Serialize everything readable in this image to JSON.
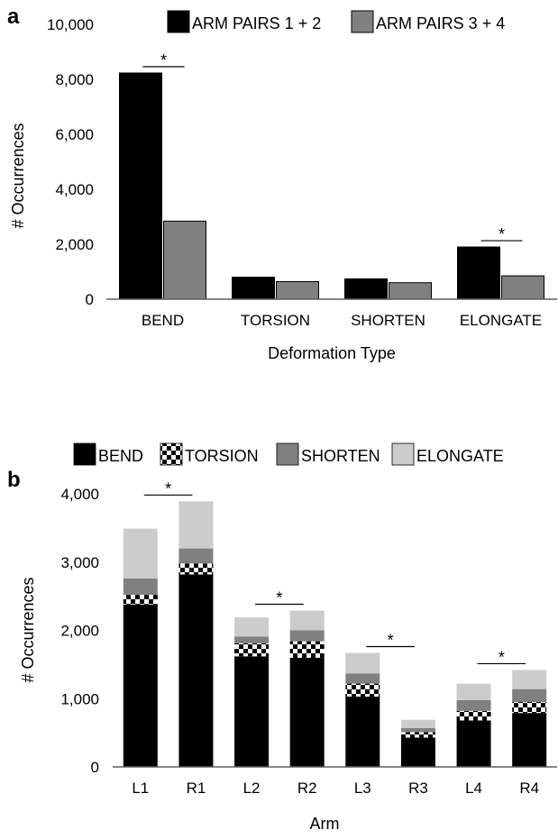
{
  "colors": {
    "black": "#000000",
    "gray": "#808080",
    "light_gray": "#cccccc",
    "axis": "#5f5f5f",
    "checker_light": "#ffffff",
    "checker_dark": "#000000"
  },
  "chart_data": [
    {
      "type": "bar",
      "panel_label": "a",
      "xlabel": "Deformation Type",
      "ylabel": "# Occurrences",
      "ylim": [
        0,
        10000
      ],
      "yticks": [
        0,
        2000,
        4000,
        6000,
        8000,
        10000
      ],
      "ytick_labels": [
        "0",
        "2,000",
        "4,000",
        "6,000",
        "8,000",
        "10,000"
      ],
      "grid": false,
      "legend_position": "top",
      "categories": [
        "BEND",
        "TORSION",
        "SHORTEN",
        "ELONGATE"
      ],
      "series": [
        {
          "name": "ARM PAIRS 1 + 2",
          "color": "#000000",
          "values": [
            8230,
            800,
            740,
            1900
          ]
        },
        {
          "name": "ARM PAIRS 3 + 4",
          "color": "#808080",
          "values": [
            2840,
            640,
            600,
            850
          ]
        }
      ],
      "significance": [
        {
          "category": "BEND",
          "label": "*"
        },
        {
          "category": "ELONGATE",
          "label": "*"
        }
      ]
    },
    {
      "type": "bar",
      "stacked": true,
      "panel_label": "b",
      "xlabel": "Arm",
      "ylabel": "# Occurrences",
      "ylim": [
        0,
        4000
      ],
      "yticks": [
        0,
        1000,
        2000,
        3000,
        4000
      ],
      "ytick_labels": [
        "0",
        "1,000",
        "2,000",
        "3,000",
        "4,000"
      ],
      "grid": false,
      "legend_position": "top",
      "categories": [
        "L1",
        "R1",
        "L2",
        "R2",
        "L3",
        "R3",
        "L4",
        "R4"
      ],
      "series": [
        {
          "name": "BEND",
          "fill": "solid",
          "color": "#000000",
          "values": [
            2380,
            2820,
            1620,
            1600,
            1030,
            430,
            680,
            790
          ]
        },
        {
          "name": "TORSION",
          "fill": "checker",
          "color": "#000000",
          "values": [
            140,
            160,
            190,
            240,
            190,
            80,
            140,
            160
          ]
        },
        {
          "name": "SHORTEN",
          "fill": "solid",
          "color": "#808080",
          "values": [
            240,
            220,
            100,
            160,
            150,
            60,
            160,
            190
          ]
        },
        {
          "name": "ELONGATE",
          "fill": "solid",
          "color": "#cccccc",
          "values": [
            730,
            690,
            280,
            290,
            300,
            120,
            240,
            280
          ]
        }
      ],
      "significance": [
        {
          "between": [
            "L1",
            "R1"
          ],
          "label": "*"
        },
        {
          "between": [
            "L2",
            "R2"
          ],
          "label": "*"
        },
        {
          "between": [
            "L3",
            "R3"
          ],
          "label": "*"
        },
        {
          "between": [
            "L4",
            "R4"
          ],
          "label": "*"
        }
      ]
    }
  ]
}
